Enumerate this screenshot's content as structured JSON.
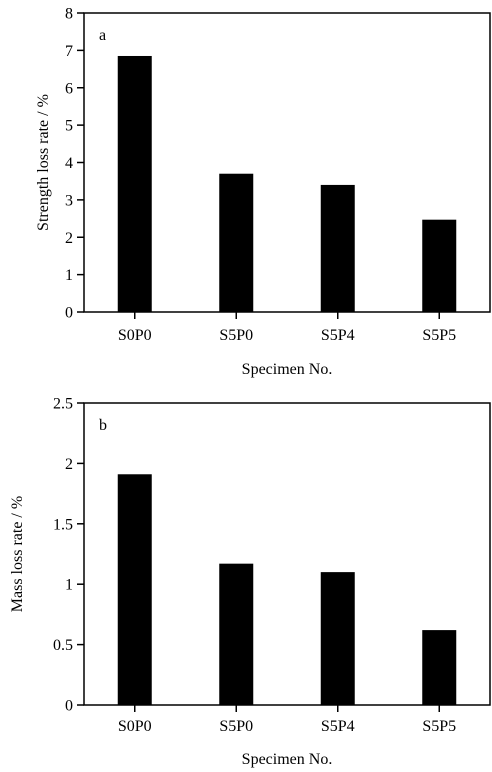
{
  "chart_data": [
    {
      "type": "bar",
      "panel_label": "a",
      "categories": [
        "S0P0",
        "S5P0",
        "S5P4",
        "S5P5"
      ],
      "values": [
        6.85,
        3.7,
        3.4,
        2.47
      ],
      "xlabel": "Specimen No.",
      "ylabel": "Strength loss rate / %",
      "ylim": [
        0,
        8
      ],
      "yticks": [
        "0",
        "1",
        "2",
        "3",
        "4",
        "5",
        "6",
        "7",
        "8"
      ],
      "grid": false,
      "bar_color": "#000000"
    },
    {
      "type": "bar",
      "panel_label": "b",
      "categories": [
        "S0P0",
        "S5P0",
        "S5P4",
        "S5P5"
      ],
      "values": [
        1.91,
        1.17,
        1.1,
        0.62
      ],
      "xlabel": "Specimen No.",
      "ylabel": "Mass loss rate / %",
      "ylim": [
        0,
        2.5
      ],
      "yticks": [
        "0",
        "0.5",
        "1",
        "1.5",
        "2",
        "2.5"
      ],
      "grid": false,
      "bar_color": "#000000"
    }
  ]
}
